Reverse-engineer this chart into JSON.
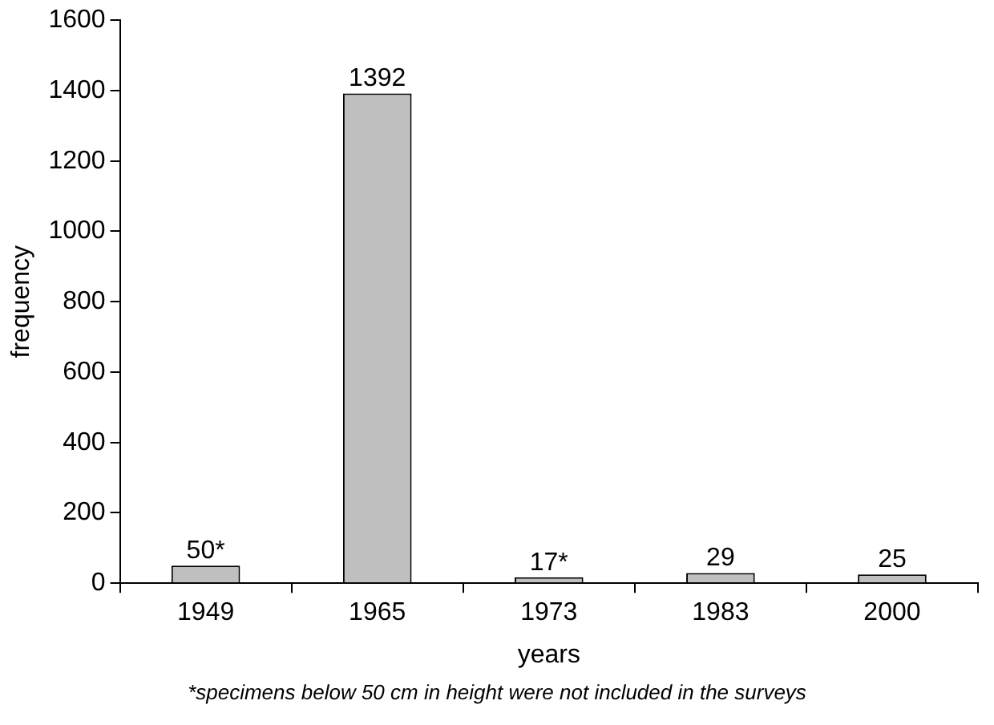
{
  "chart_data": {
    "type": "bar",
    "xlabel": "years",
    "ylabel": "frequency",
    "categories": [
      "1949",
      "1965",
      "1973",
      "1983",
      "2000"
    ],
    "values": [
      50,
      1392,
      17,
      29,
      25
    ],
    "value_labels": [
      "50*",
      "1392",
      "17*",
      "29",
      "25"
    ],
    "color": "#bfbfbf",
    "ylim": [
      0,
      1600
    ],
    "yticks": [
      0,
      200,
      400,
      600,
      800,
      1000,
      1200,
      1400,
      1600
    ],
    "grid": false,
    "legend": false,
    "annotations": [
      "*specimens below 50 cm in height were not included in the surveys"
    ]
  }
}
